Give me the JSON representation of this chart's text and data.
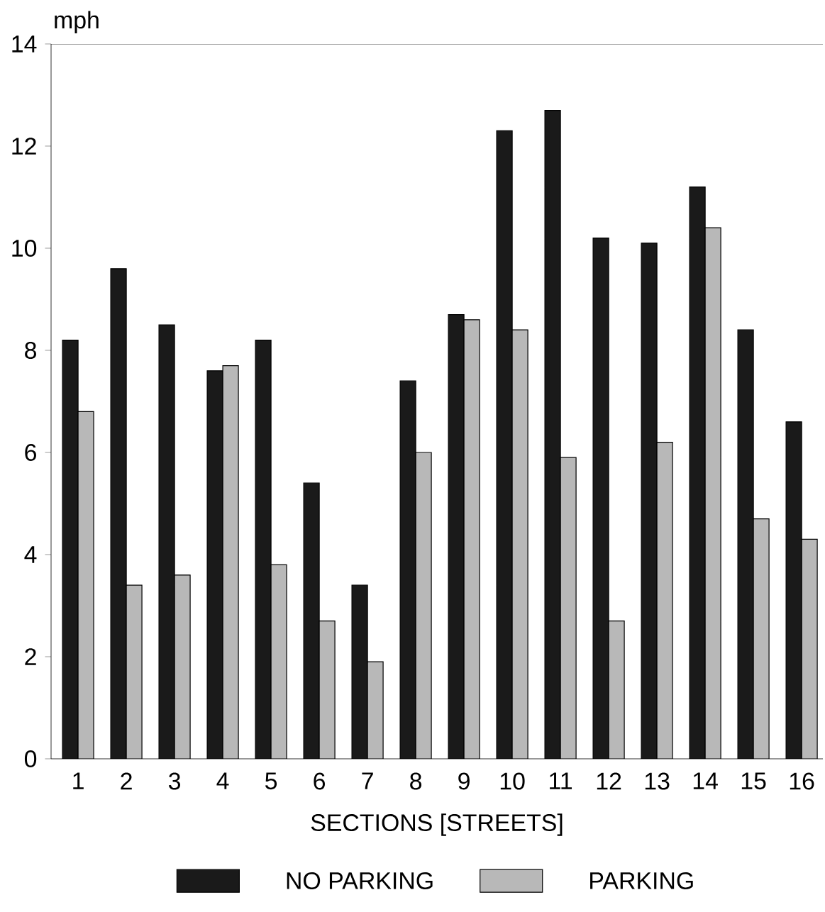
{
  "chart_data": {
    "type": "bar",
    "ylabel": "mph",
    "xlabel": "SECTIONS [STREETS]",
    "categories": [
      "1",
      "2",
      "3",
      "4",
      "5",
      "6",
      "7",
      "8",
      "9",
      "10",
      "11",
      "12",
      "13",
      "14",
      "15",
      "16"
    ],
    "series": [
      {
        "name": "NO PARKING",
        "color": "#1a1a1a",
        "values": [
          8.2,
          9.6,
          8.5,
          7.6,
          8.2,
          5.4,
          3.4,
          7.4,
          8.7,
          12.3,
          12.7,
          10.2,
          10.1,
          11.2,
          8.4,
          6.6
        ]
      },
      {
        "name": "PARKING",
        "color": "#b8b8b8",
        "values": [
          6.8,
          3.4,
          3.6,
          7.7,
          3.8,
          2.7,
          1.9,
          6.0,
          8.6,
          8.4,
          5.9,
          2.7,
          6.2,
          10.4,
          4.7,
          4.3
        ]
      }
    ],
    "ylim": [
      0,
      14
    ],
    "yticks": [
      0,
      2,
      4,
      6,
      8,
      10,
      12,
      14
    ],
    "legend": "bottom"
  }
}
